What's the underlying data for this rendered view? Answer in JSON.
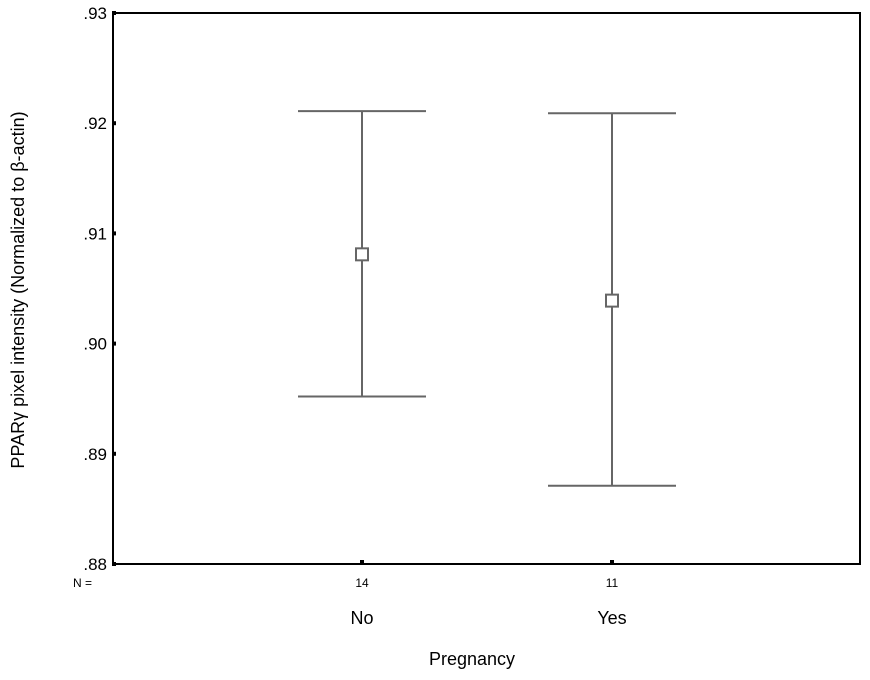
{
  "chart_data": {
    "type": "error-bar",
    "categories": [
      "No",
      "Yes"
    ],
    "n_label": "N =",
    "n_values": [
      "14",
      "11"
    ],
    "series": [
      {
        "mean": [
          0.9081,
          0.9039
        ],
        "lower": [
          0.8952,
          0.8871
        ],
        "upper": [
          0.9211,
          0.9209
        ]
      }
    ],
    "xlabel": "Pregnancy",
    "ylabel": "PPARγ pixel intensity (Normalized to β-actin)",
    "ylim": [
      0.88,
      0.93
    ],
    "yticks": [
      0.88,
      0.89,
      0.9,
      0.91,
      0.92,
      0.93
    ],
    "ytick_labels": [
      ".88",
      ".89",
      ".90",
      ".91",
      ".92",
      ".93"
    ],
    "grid": false,
    "colors": {
      "bars": "#666666",
      "frame": "#000000",
      "marker_fill": "#ffffff"
    }
  }
}
